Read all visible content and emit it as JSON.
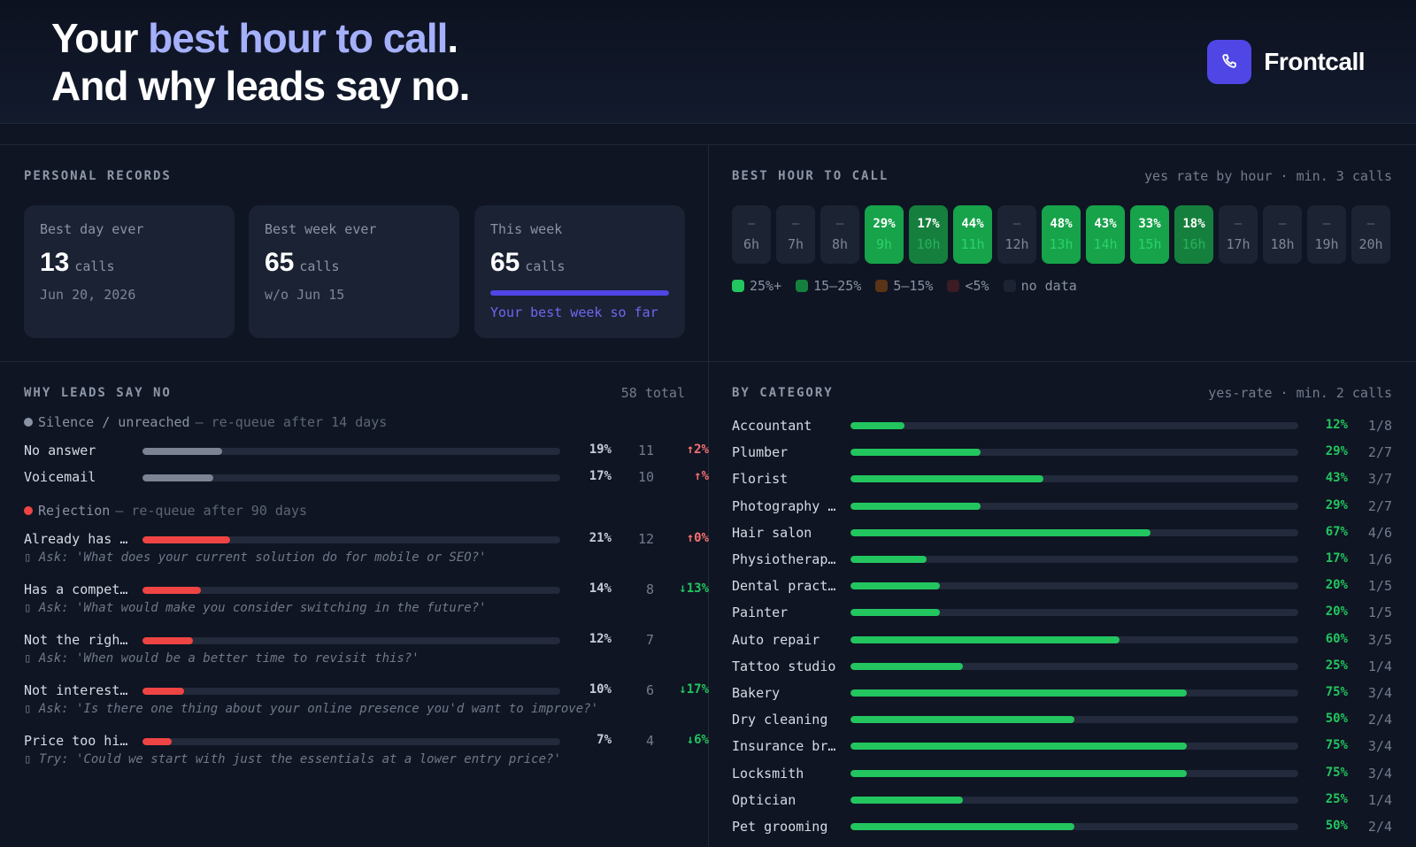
{
  "header": {
    "headline_part1": "Your ",
    "headline_accent": "best hour to call",
    "headline_part2": ".",
    "headline_line2": "And why leads say no.",
    "brand_name": "Frontcall",
    "brand_icon": "phone-icon"
  },
  "records": {
    "title": "PERSONAL RECORDS",
    "cards": [
      {
        "label": "Best day ever",
        "value": "13",
        "unit": "calls",
        "sub": "Jun 20, 2026"
      },
      {
        "label": "Best week ever",
        "value": "65",
        "unit": "calls",
        "sub": "w/o Jun 15"
      },
      {
        "label": "This week",
        "value": "65",
        "unit": "calls",
        "progress": 1.0,
        "note": "Your best week so far"
      }
    ]
  },
  "best_hour": {
    "title": "BEST HOUR TO CALL",
    "subtitle": "yes rate by hour · min. 3 calls",
    "hours": [
      {
        "label": "6h",
        "value": "—",
        "level": "nodata"
      },
      {
        "label": "7h",
        "value": "—",
        "level": "nodata"
      },
      {
        "label": "8h",
        "value": "—",
        "level": "nodata"
      },
      {
        "label": "9h",
        "value": "29%",
        "level": "high"
      },
      {
        "label": "10h",
        "value": "17%",
        "level": "mid"
      },
      {
        "label": "11h",
        "value": "44%",
        "level": "high"
      },
      {
        "label": "12h",
        "value": "—",
        "level": "nodata"
      },
      {
        "label": "13h",
        "value": "48%",
        "level": "high"
      },
      {
        "label": "14h",
        "value": "43%",
        "level": "high"
      },
      {
        "label": "15h",
        "value": "33%",
        "level": "high"
      },
      {
        "label": "16h",
        "value": "18%",
        "level": "mid"
      },
      {
        "label": "17h",
        "value": "—",
        "level": "nodata"
      },
      {
        "label": "18h",
        "value": "—",
        "level": "nodata"
      },
      {
        "label": "19h",
        "value": "—",
        "level": "nodata"
      },
      {
        "label": "20h",
        "value": "—",
        "level": "nodata"
      }
    ],
    "legend": [
      {
        "label": "25%+",
        "color": "#22c55e"
      },
      {
        "label": "15–25%",
        "color": "#15803d"
      },
      {
        "label": "5–15%",
        "color": "#5a3416"
      },
      {
        "label": "<5%",
        "color": "#3a1c22"
      },
      {
        "label": "no data",
        "color": "#1c2434"
      }
    ]
  },
  "reasons": {
    "title": "WHY LEADS SAY NO",
    "total": "58 total",
    "groups": [
      {
        "name": "Silence / unreached",
        "note": "— re-queue after 14 days",
        "color": "#8a93a3",
        "bar_color": "#7c8393",
        "items": [
          {
            "name": "No answer",
            "share": 0.19,
            "pct": "19%",
            "count": "11",
            "delta": "↑2%",
            "delta_color": "#f87171"
          },
          {
            "name": "Voicemail",
            "share": 0.17,
            "pct": "17%",
            "count": "10",
            "delta": "↑%",
            "delta_color": "#f87171"
          }
        ]
      },
      {
        "name": "Rejection",
        "note": "— re-queue after 90 days",
        "color": "#ef4444",
        "bar_color": "#ef4444",
        "items": [
          {
            "name": "Already has …",
            "share": 0.21,
            "pct": "21%",
            "count": "12",
            "delta": "↑0%",
            "delta_color": "#f87171",
            "ask": "▯ Ask: 'What does your current solution do for mobile or SEO?'"
          },
          {
            "name": "Has a compet…",
            "share": 0.14,
            "pct": "14%",
            "count": "8",
            "delta": "↓13%",
            "delta_color": "#22c55e",
            "ask": "▯ Ask: 'What would make you consider switching in the future?'"
          },
          {
            "name": "Not the righ…",
            "share": 0.12,
            "pct": "12%",
            "count": "7",
            "delta": "",
            "delta_color": "#22c55e",
            "ask": "▯ Ask: 'When would be a better time to revisit this?'"
          },
          {
            "name": "Not interest…",
            "share": 0.1,
            "pct": "10%",
            "count": "6",
            "delta": "↓17%",
            "delta_color": "#22c55e",
            "ask": "▯ Ask: 'Is there one thing about your online presence you'd want to improve?'"
          },
          {
            "name": "Price too hi…",
            "share": 0.07,
            "pct": "7%",
            "count": "4",
            "delta": "↓6%",
            "delta_color": "#22c55e",
            "ask": "▯ Try: 'Could we start with just the essentials at a lower entry price?'"
          }
        ]
      }
    ]
  },
  "categories": {
    "title": "BY CATEGORY",
    "subtitle": "yes-rate · min. 2 calls",
    "items": [
      {
        "name": "Accountant",
        "rate": 0.12,
        "pct": "12%",
        "frac": "1/8"
      },
      {
        "name": "Plumber",
        "rate": 0.29,
        "pct": "29%",
        "frac": "2/7"
      },
      {
        "name": "Florist",
        "rate": 0.43,
        "pct": "43%",
        "frac": "3/7"
      },
      {
        "name": "Photography …",
        "rate": 0.29,
        "pct": "29%",
        "frac": "2/7"
      },
      {
        "name": "Hair salon",
        "rate": 0.67,
        "pct": "67%",
        "frac": "4/6"
      },
      {
        "name": "Physiotherap…",
        "rate": 0.17,
        "pct": "17%",
        "frac": "1/6"
      },
      {
        "name": "Dental pract…",
        "rate": 0.2,
        "pct": "20%",
        "frac": "1/5"
      },
      {
        "name": "Painter",
        "rate": 0.2,
        "pct": "20%",
        "frac": "1/5"
      },
      {
        "name": "Auto repair",
        "rate": 0.6,
        "pct": "60%",
        "frac": "3/5"
      },
      {
        "name": "Tattoo studio",
        "rate": 0.25,
        "pct": "25%",
        "frac": "1/4"
      },
      {
        "name": "Bakery",
        "rate": 0.75,
        "pct": "75%",
        "frac": "3/4"
      },
      {
        "name": "Dry cleaning",
        "rate": 0.5,
        "pct": "50%",
        "frac": "2/4"
      },
      {
        "name": "Insurance br…",
        "rate": 0.75,
        "pct": "75%",
        "frac": "3/4"
      },
      {
        "name": "Locksmith",
        "rate": 0.75,
        "pct": "75%",
        "frac": "3/4"
      },
      {
        "name": "Optician",
        "rate": 0.25,
        "pct": "25%",
        "frac": "1/4"
      },
      {
        "name": "Pet grooming",
        "rate": 0.5,
        "pct": "50%",
        "frac": "2/4"
      }
    ]
  }
}
